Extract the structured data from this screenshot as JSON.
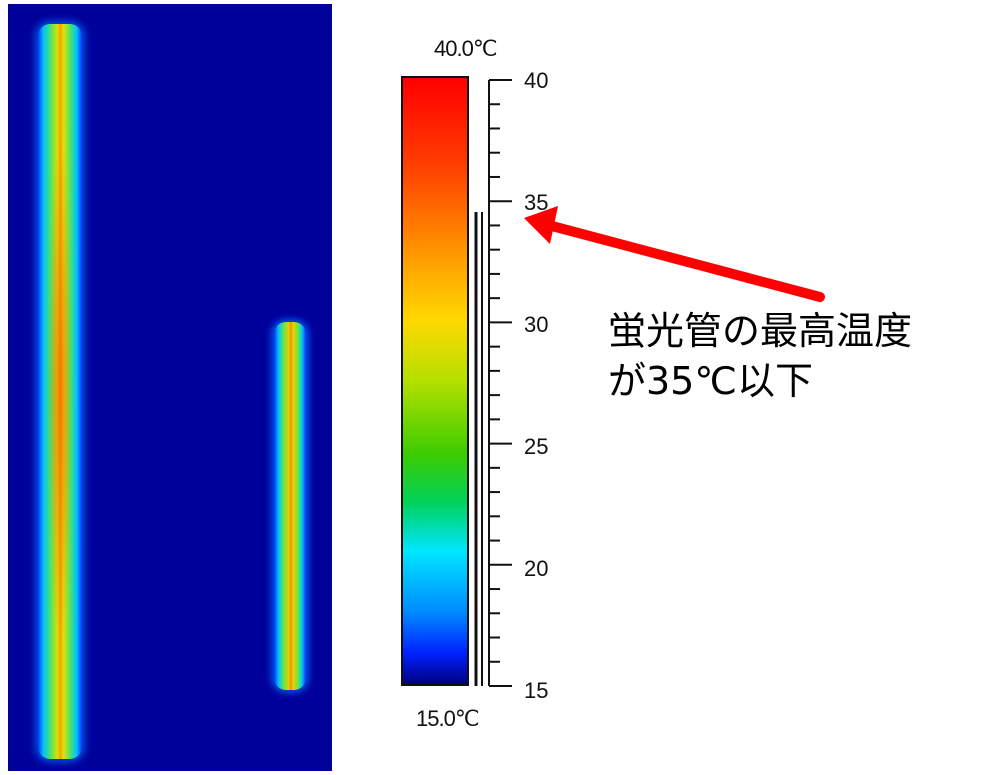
{
  "scale": {
    "max_label": "40.0℃",
    "min_label": "15.0℃",
    "ticks": [
      "40",
      "35",
      "30",
      "25",
      "20",
      "15"
    ],
    "max": 40,
    "min": 15,
    "marker_value": 34.5
  },
  "annotation": {
    "line1": "蛍光管の最高温度",
    "line2": "が35℃以下",
    "arrow_color": "#ff0000"
  },
  "colors": {
    "background": "#00009a",
    "arrow": "#ff0000"
  }
}
